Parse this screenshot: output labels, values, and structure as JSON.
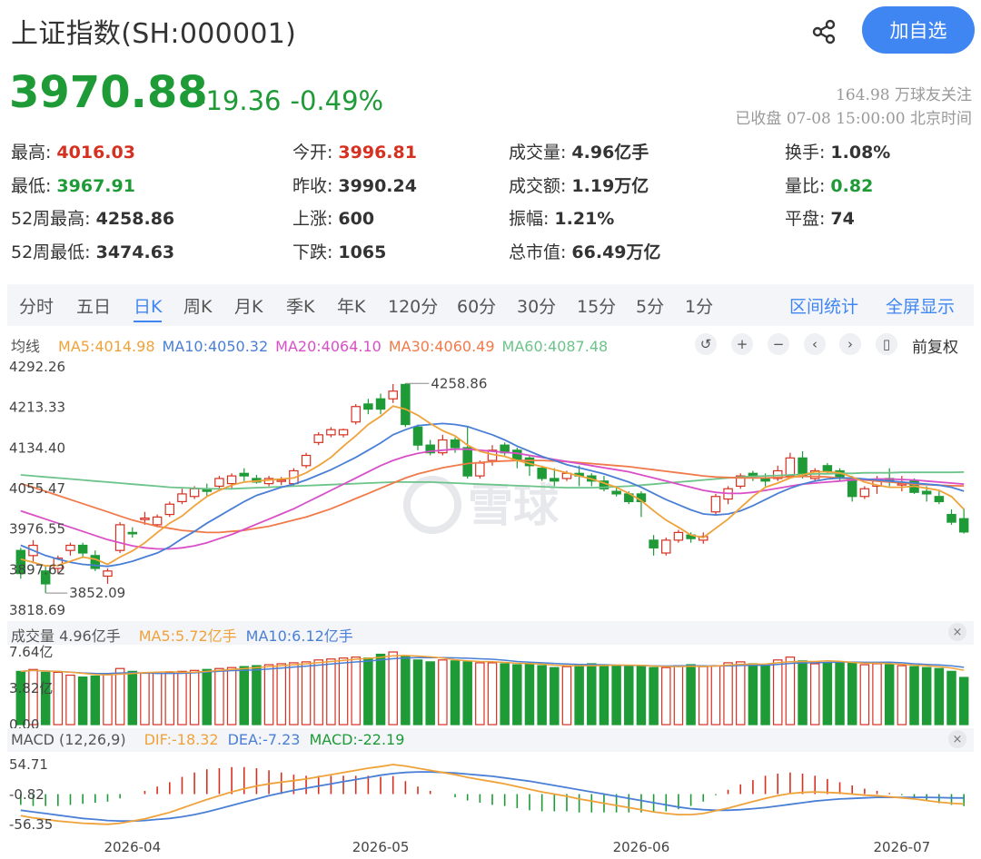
{
  "header": {
    "title": "上证指数(SH:000001)",
    "add_label": "加自选",
    "price": "3970.88",
    "change": "-19.36",
    "change_pct": "-0.49%",
    "followers": "164.98 万球友关注",
    "status": "已收盘 07-08 15:00:00 北京时间"
  },
  "stats": [
    {
      "label": "最高:",
      "value": "4016.03",
      "color": "up"
    },
    {
      "label": "今开:",
      "value": "3996.81",
      "color": "up"
    },
    {
      "label": "成交量:",
      "value": "4.96亿手",
      "color": ""
    },
    {
      "label": "换手:",
      "value": "1.08%",
      "color": ""
    },
    {
      "label": "最低:",
      "value": "3967.91",
      "color": "down"
    },
    {
      "label": "昨收:",
      "value": "3990.24",
      "color": ""
    },
    {
      "label": "成交额:",
      "value": "1.19万亿",
      "color": ""
    },
    {
      "label": "量比:",
      "value": "0.82",
      "color": "down"
    },
    {
      "label": "52周最高:",
      "value": "4258.86",
      "color": ""
    },
    {
      "label": "上涨:",
      "value": "600",
      "color": ""
    },
    {
      "label": "振幅:",
      "value": "1.21%",
      "color": ""
    },
    {
      "label": "平盘:",
      "value": "74",
      "color": ""
    },
    {
      "label": "52周最低:",
      "value": "3474.63",
      "color": ""
    },
    {
      "label": "下跌:",
      "value": "1065",
      "color": ""
    },
    {
      "label": "总市值:",
      "value": "66.49万亿",
      "color": ""
    }
  ],
  "tabs": [
    "分时",
    "五日",
    "日K",
    "周K",
    "月K",
    "季K",
    "年K",
    "120分",
    "60分",
    "30分",
    "15分",
    "5分",
    "1分"
  ],
  "active_tab": "日K",
  "tab_links": [
    "区间统计",
    "全屏显示"
  ],
  "ma_legend": {
    "label": "均线",
    "items": [
      {
        "text": "MA5:4014.98",
        "color": "#f0a23a"
      },
      {
        "text": "MA10:4050.32",
        "color": "#4a7fd6"
      },
      {
        "text": "MA20:4064.10",
        "color": "#d94fc7"
      },
      {
        "text": "MA30:4060.49",
        "color": "#f07a4a"
      },
      {
        "text": "MA60:4087.48",
        "color": "#6cc48a"
      }
    ]
  },
  "controls": [
    {
      "name": "back-icon",
      "glyph": "↺"
    },
    {
      "name": "zoom-in-icon",
      "glyph": "+"
    },
    {
      "name": "zoom-out-icon",
      "glyph": "−"
    },
    {
      "name": "prev-icon",
      "glyph": "‹"
    },
    {
      "name": "next-icon",
      "glyph": "›"
    },
    {
      "name": "candle-type-icon",
      "glyph": "▯"
    }
  ],
  "adjust_label": "前复权",
  "watermark": "雪球",
  "vol_legend": {
    "label": "成交量 4.96亿手",
    "items": [
      {
        "text": "MA5:5.72亿手",
        "color": "#f0a23a"
      },
      {
        "text": "MA10:6.12亿手",
        "color": "#4a7fd6"
      }
    ]
  },
  "macd_legend": {
    "label": "MACD (12,26,9)",
    "items": [
      {
        "text": "DIF:-18.32",
        "color": "#f0a23a"
      },
      {
        "text": "DEA:-7.23",
        "color": "#4a7fd6"
      },
      {
        "text": "MACD:-22.19",
        "color": "#1e9a36"
      }
    ]
  },
  "close_glyph": "×",
  "chart_data": {
    "type": "candlestick",
    "price_axis": {
      "ticks": [
        "4292.26",
        "4213.33",
        "4134.40",
        "4055.47",
        "3976.55",
        "3897.62",
        "3818.69"
      ],
      "range": [
        3818.69,
        4292.26
      ]
    },
    "annotations": {
      "high": "4258.86",
      "low": "3852.09"
    },
    "volume_axis": {
      "ticks": [
        "7.64亿",
        "3.82亿",
        "0.00"
      ],
      "range": [
        0,
        7.64
      ]
    },
    "macd_axis": {
      "ticks": [
        "54.71",
        "-0.82",
        "-56.35"
      ],
      "range": [
        -56.35,
        54.71
      ]
    },
    "x_ticks": [
      "2026-04",
      "2026-05",
      "2026-06",
      "2026-07"
    ],
    "x_tick_index": [
      9,
      29,
      50,
      71
    ],
    "candles": [
      [
        3935,
        3890,
        3940,
        3880
      ],
      [
        3925,
        3945,
        3955,
        3910
      ],
      [
        3895,
        3870,
        3905,
        3852
      ],
      [
        3900,
        3920,
        3925,
        3890
      ],
      [
        3935,
        3945,
        3950,
        3925
      ],
      [
        3945,
        3930,
        3950,
        3920
      ],
      [
        3925,
        3900,
        3935,
        3895
      ],
      [
        3885,
        3895,
        3900,
        3870
      ],
      [
        3935,
        3985,
        3990,
        3930
      ],
      [
        3970,
        3968,
        3980,
        3960
      ],
      [
        3995,
        3998,
        4010,
        3985
      ],
      [
        3985,
        4000,
        4005,
        3980
      ],
      [
        4005,
        4025,
        4030,
        4000
      ],
      [
        4030,
        4045,
        4055,
        4025
      ],
      [
        4040,
        4055,
        4060,
        4035
      ],
      [
        4055,
        4050,
        4065,
        4040
      ],
      [
        4060,
        4075,
        4080,
        4055
      ],
      [
        4065,
        4080,
        4085,
        4055
      ],
      [
        4085,
        4080,
        4095,
        4070
      ],
      [
        4075,
        4068,
        4082,
        4065
      ],
      [
        4065,
        4075,
        4080,
        4060
      ],
      [
        4070,
        4072,
        4078,
        4062
      ],
      [
        4065,
        4090,
        4095,
        4060
      ],
      [
        4100,
        4120,
        4125,
        4095
      ],
      [
        4145,
        4160,
        4165,
        4140
      ],
      [
        4160,
        4170,
        4175,
        4155
      ],
      [
        4160,
        4170,
        4172,
        4155
      ],
      [
        4185,
        4215,
        4220,
        4180
      ],
      [
        4220,
        4210,
        4230,
        4200
      ],
      [
        4230,
        4210,
        4240,
        4200
      ],
      [
        4230,
        4245,
        4258.86,
        4222
      ],
      [
        4258,
        4180,
        4260,
        4175
      ],
      [
        4175,
        4140,
        4180,
        4130
      ],
      [
        4140,
        4125,
        4150,
        4120
      ],
      [
        4125,
        4150,
        4160,
        4120
      ],
      [
        4150,
        4135,
        4155,
        4125
      ],
      [
        4135,
        4080,
        4175,
        4075
      ],
      [
        4080,
        4105,
        4110,
        4075
      ],
      [
        4110,
        4130,
        4140,
        4100
      ],
      [
        4140,
        4125,
        4145,
        4120
      ],
      [
        4130,
        4110,
        4135,
        4095
      ],
      [
        4115,
        4100,
        4120,
        4080
      ],
      [
        4095,
        4075,
        4100,
        4070
      ],
      [
        4075,
        4070,
        4095,
        4060
      ],
      [
        4075,
        4085,
        4090,
        4070
      ],
      [
        4085,
        4080,
        4100,
        4060
      ],
      [
        4080,
        4070,
        4085,
        4060
      ],
      [
        4070,
        4055,
        4080,
        4050
      ],
      [
        4050,
        4045,
        4060,
        4040
      ],
      [
        4045,
        4030,
        4050,
        4025
      ],
      [
        4045,
        4030,
        4050,
        4000
      ],
      [
        3955,
        3940,
        3965,
        3925
      ],
      [
        3930,
        3955,
        3960,
        3925
      ],
      [
        3955,
        3970,
        3975,
        3950
      ],
      [
        3965,
        3958,
        3970,
        3950
      ],
      [
        3955,
        3962,
        3970,
        3948
      ],
      [
        4010,
        4040,
        4045,
        4005
      ],
      [
        4035,
        4055,
        4060,
        4025
      ],
      [
        4060,
        4080,
        4085,
        4055
      ],
      [
        4085,
        4080,
        4090,
        4070
      ],
      [
        4075,
        4070,
        4085,
        4060
      ],
      [
        4075,
        4090,
        4100,
        4070
      ],
      [
        4080,
        4115,
        4125,
        4075
      ],
      [
        4115,
        4080,
        4128,
        4075
      ],
      [
        4075,
        4090,
        4095,
        4070
      ],
      [
        4100,
        4090,
        4105,
        4085
      ],
      [
        4090,
        4075,
        4095,
        4070
      ],
      [
        4075,
        4040,
        4080,
        4030
      ],
      [
        4040,
        4055,
        4060,
        4035
      ],
      [
        4060,
        4070,
        4080,
        4045
      ],
      [
        4075,
        4070,
        4095,
        4060
      ],
      [
        4065,
        4065,
        4080,
        4050
      ],
      [
        4070,
        4048,
        4075,
        4045
      ],
      [
        4050,
        4045,
        4060,
        4030
      ],
      [
        4040,
        4030,
        4050,
        4025
      ],
      [
        4005,
        3990,
        4015,
        3985
      ],
      [
        3996.81,
        3970.88,
        4016.03,
        3967.91
      ]
    ],
    "volume": [
      5.6,
      5.8,
      5.5,
      5.5,
      5.2,
      5.0,
      5.1,
      5.3,
      5.9,
      5.6,
      5.4,
      5.4,
      5.5,
      5.6,
      5.7,
      5.8,
      5.9,
      6.0,
      6.1,
      6.2,
      6.3,
      6.4,
      6.5,
      6.6,
      6.8,
      6.9,
      7.0,
      7.1,
      7.0,
      7.4,
      7.64,
      7.2,
      6.8,
      6.6,
      6.8,
      6.7,
      6.6,
      6.5,
      6.5,
      6.4,
      6.3,
      6.4,
      6.2,
      6.0,
      6.1,
      6.3,
      6.4,
      6.3,
      6.2,
      6.1,
      6.2,
      6.0,
      6.0,
      6.2,
      6.3,
      6.1,
      6.2,
      6.5,
      6.6,
      6.4,
      6.2,
      6.8,
      7.1,
      6.7,
      6.4,
      6.5,
      6.6,
      6.5,
      6.3,
      6.4,
      6.3,
      6.2,
      6.1,
      6.0,
      5.9,
      5.6,
      4.96
    ],
    "ma5": [
      3918,
      3912,
      3905,
      3906,
      3914,
      3922,
      3918,
      3908,
      3922,
      3934,
      3950,
      3970,
      3988,
      4002,
      4022,
      4040,
      4052,
      4062,
      4068,
      4070,
      4072,
      4074,
      4076,
      4086,
      4100,
      4116,
      4138,
      4158,
      4180,
      4196,
      4216,
      4210,
      4198,
      4182,
      4168,
      4158,
      4140,
      4128,
      4122,
      4118,
      4110,
      4104,
      4098,
      4092,
      4086,
      4080,
      4074,
      4066,
      4058,
      4046,
      4032,
      4012,
      3994,
      3980,
      3965,
      3960,
      3978,
      3996,
      4018,
      4040,
      4058,
      4066,
      4076,
      4082,
      4088,
      4088,
      4086,
      4078,
      4068,
      4062,
      4058,
      4058,
      4060,
      4056,
      4052,
      4040,
      4014.98
    ],
    "ma10": [
      3945,
      3935,
      3925,
      3918,
      3912,
      3908,
      3906,
      3904,
      3908,
      3914,
      3922,
      3930,
      3942,
      3958,
      3972,
      3988,
      4002,
      4016,
      4030,
      4042,
      4050,
      4058,
      4064,
      4072,
      4082,
      4092,
      4104,
      4116,
      4130,
      4144,
      4160,
      4170,
      4178,
      4180,
      4182,
      4180,
      4176,
      4168,
      4160,
      4150,
      4138,
      4128,
      4118,
      4110,
      4102,
      4096,
      4090,
      4084,
      4076,
      4068,
      4058,
      4046,
      4034,
      4024,
      4014,
      4006,
      4004,
      4006,
      4012,
      4022,
      4034,
      4046,
      4056,
      4064,
      4070,
      4074,
      4076,
      4076,
      4074,
      4072,
      4070,
      4068,
      4066,
      4064,
      4062,
      4058,
      4050.32
    ],
    "ma20": [
      4012,
      4004,
      3996,
      3988,
      3980,
      3972,
      3964,
      3956,
      3950,
      3944,
      3940,
      3938,
      3938,
      3940,
      3944,
      3950,
      3958,
      3966,
      3976,
      3986,
      3996,
      4006,
      4016,
      4028,
      4040,
      4052,
      4064,
      4076,
      4088,
      4100,
      4110,
      4118,
      4124,
      4128,
      4130,
      4132,
      4132,
      4130,
      4128,
      4126,
      4124,
      4120,
      4116,
      4112,
      4108,
      4104,
      4100,
      4096,
      4092,
      4088,
      4082,
      4076,
      4070,
      4064,
      4058,
      4052,
      4048,
      4046,
      4046,
      4048,
      4052,
      4056,
      4060,
      4064,
      4066,
      4068,
      4070,
      4072,
      4073,
      4074,
      4074,
      4073,
      4072,
      4070,
      4068,
      4066,
      4064.1
    ],
    "ma30": [
      4065,
      4058,
      4050,
      4042,
      4034,
      4026,
      4018,
      4010,
      4002,
      3994,
      3988,
      3982,
      3978,
      3974,
      3972,
      3970,
      3970,
      3972,
      3974,
      3978,
      3982,
      3988,
      3994,
      4000,
      4008,
      4016,
      4026,
      4036,
      4046,
      4056,
      4066,
      4076,
      4084,
      4090,
      4096,
      4100,
      4104,
      4106,
      4108,
      4109,
      4110,
      4110,
      4110,
      4109,
      4108,
      4106,
      4104,
      4102,
      4100,
      4098,
      4095,
      4092,
      4089,
      4086,
      4083,
      4080,
      4078,
      4077,
      4076,
      4076,
      4076,
      4077,
      4078,
      4079,
      4079,
      4078,
      4076,
      4074,
      4072,
      4070,
      4068,
      4066,
      4064,
      4063,
      4062,
      4061,
      4060.49
    ],
    "ma60": [
      4082,
      4080,
      4078,
      4076,
      4074,
      4072,
      4070,
      4068,
      4066,
      4064,
      4062,
      4060,
      4058,
      4057,
      4056,
      4055,
      4055,
      4055,
      4056,
      4057,
      4058,
      4059,
      4060,
      4061,
      4062,
      4063,
      4064,
      4065,
      4066,
      4067,
      4068,
      4068,
      4068,
      4068,
      4067,
      4066,
      4065,
      4064,
      4063,
      4062,
      4061,
      4060,
      4059,
      4058,
      4057,
      4057,
      4057,
      4058,
      4059,
      4060,
      4062,
      4064,
      4066,
      4068,
      4070,
      4072,
      4074,
      4076,
      4078,
      4079,
      4080,
      4081,
      4082,
      4083,
      4084,
      4084,
      4085,
      4085,
      4086,
      4086,
      4086,
      4087,
      4087,
      4087,
      4087,
      4087,
      4087.48
    ],
    "dif": [
      -40,
      -44,
      -47,
      -50,
      -52,
      -54,
      -55,
      -56,
      -54,
      -50,
      -46,
      -40,
      -34,
      -26,
      -18,
      -10,
      -3,
      4,
      10,
      15,
      19,
      22,
      25,
      28,
      32,
      36,
      40,
      44,
      48,
      51,
      54.71,
      52,
      48,
      44,
      40,
      36,
      31,
      27,
      23,
      19,
      14,
      9,
      4,
      0,
      -4,
      -9,
      -13,
      -17,
      -21,
      -25,
      -29,
      -33,
      -36,
      -38,
      -38,
      -36,
      -31,
      -26,
      -20,
      -14,
      -8,
      -3,
      1,
      3,
      4,
      3,
      2,
      0,
      -2,
      -3,
      -5,
      -7,
      -9,
      -12,
      -15,
      -17,
      -18.32
    ],
    "dea": [
      -30,
      -33,
      -36,
      -39,
      -42,
      -45,
      -47,
      -49,
      -50,
      -50,
      -49,
      -47,
      -45,
      -42,
      -38,
      -33,
      -27,
      -21,
      -15,
      -9,
      -3,
      2,
      7,
      11,
      15,
      19,
      23,
      27,
      31,
      35,
      38,
      40,
      41,
      41,
      40,
      39,
      37,
      35,
      33,
      30,
      27,
      24,
      20,
      16,
      12,
      8,
      4,
      0,
      -4,
      -8,
      -12,
      -16,
      -20,
      -24,
      -27,
      -29,
      -30,
      -30,
      -29,
      -27,
      -25,
      -22,
      -19,
      -16,
      -13,
      -11,
      -9,
      -8,
      -7,
      -6,
      -6,
      -6,
      -6,
      -6,
      -6.5,
      -7,
      -7.23
    ]
  }
}
